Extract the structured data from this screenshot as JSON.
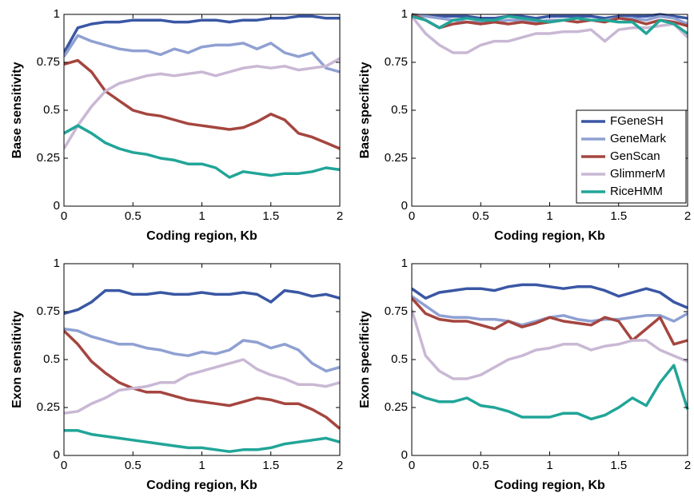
{
  "chart_data": [
    {
      "type": "line",
      "xlabel": "Coding region, Kb",
      "ylabel": "Base sensitivity",
      "x": [
        0,
        0.1,
        0.2,
        0.3,
        0.4,
        0.5,
        0.6,
        0.7,
        0.8,
        0.9,
        1,
        1.1,
        1.2,
        1.3,
        1.4,
        1.5,
        1.6,
        1.7,
        1.8,
        1.9,
        2
      ],
      "xlim": [
        0,
        2
      ],
      "ylim": [
        0,
        1
      ],
      "xticks": [
        0,
        0.5,
        1,
        1.5,
        2
      ],
      "yticks": [
        0,
        0.25,
        0.5,
        0.75,
        1
      ],
      "series": [
        {
          "color": "#3a57a4",
          "values": [
            0.8,
            0.93,
            0.95,
            0.96,
            0.96,
            0.97,
            0.97,
            0.97,
            0.96,
            0.96,
            0.97,
            0.97,
            0.96,
            0.97,
            0.97,
            0.98,
            0.98,
            0.99,
            0.99,
            0.98,
            0.98
          ]
        },
        {
          "color": "#8fa0d2",
          "values": [
            0.78,
            0.89,
            0.86,
            0.84,
            0.82,
            0.81,
            0.81,
            0.79,
            0.82,
            0.8,
            0.83,
            0.84,
            0.84,
            0.85,
            0.82,
            0.85,
            0.8,
            0.78,
            0.8,
            0.72,
            0.7
          ]
        },
        {
          "color": "#a5453f",
          "values": [
            0.74,
            0.76,
            0.7,
            0.6,
            0.55,
            0.5,
            0.48,
            0.47,
            0.45,
            0.43,
            0.42,
            0.41,
            0.4,
            0.41,
            0.44,
            0.48,
            0.45,
            0.38,
            0.36,
            0.33,
            0.3
          ]
        },
        {
          "color": "#c9b8d4",
          "values": [
            0.3,
            0.42,
            0.52,
            0.6,
            0.64,
            0.66,
            0.68,
            0.69,
            0.68,
            0.69,
            0.7,
            0.68,
            0.7,
            0.72,
            0.73,
            0.72,
            0.73,
            0.71,
            0.72,
            0.73,
            0.77
          ]
        },
        {
          "color": "#21a598",
          "values": [
            0.38,
            0.42,
            0.38,
            0.33,
            0.3,
            0.28,
            0.27,
            0.25,
            0.24,
            0.22,
            0.22,
            0.2,
            0.15,
            0.18,
            0.17,
            0.16,
            0.17,
            0.17,
            0.18,
            0.2,
            0.19
          ]
        }
      ]
    },
    {
      "type": "line",
      "xlabel": "Coding region, Kb",
      "ylabel": "Base specificity",
      "x": [
        0,
        0.1,
        0.2,
        0.3,
        0.4,
        0.5,
        0.6,
        0.7,
        0.8,
        0.9,
        1,
        1.1,
        1.2,
        1.3,
        1.4,
        1.5,
        1.6,
        1.7,
        1.8,
        1.9,
        2
      ],
      "xlim": [
        0,
        2
      ],
      "ylim": [
        0,
        1
      ],
      "xticks": [
        0,
        0.5,
        1,
        1.5,
        2
      ],
      "yticks": [
        0,
        0.25,
        0.5,
        0.75,
        1
      ],
      "legend": "lower right",
      "series": [
        {
          "name": "FGeneSH",
          "color": "#3a57a4",
          "values": [
            1,
            0.99,
            0.99,
            0.99,
            0.99,
            0.98,
            0.98,
            0.99,
            0.99,
            0.98,
            0.99,
            0.99,
            0.99,
            0.99,
            0.98,
            0.99,
            0.99,
            0.99,
            1,
            0.99,
            0.98
          ]
        },
        {
          "name": "GeneMark",
          "color": "#8fa0d2",
          "values": [
            1,
            0.99,
            0.98,
            0.97,
            0.96,
            0.96,
            0.96,
            0.97,
            0.97,
            0.96,
            0.97,
            0.97,
            0.96,
            0.97,
            0.97,
            0.98,
            0.98,
            0.97,
            0.99,
            0.98,
            0.95
          ]
        },
        {
          "name": "GenScan",
          "color": "#a5453f",
          "values": [
            1,
            0.97,
            0.93,
            0.95,
            0.96,
            0.95,
            0.96,
            0.95,
            0.96,
            0.95,
            0.96,
            0.97,
            0.96,
            0.97,
            0.96,
            0.98,
            0.97,
            0.95,
            0.97,
            0.96,
            0.94
          ]
        },
        {
          "name": "GlimmerM",
          "color": "#c9b8d4",
          "values": [
            0.99,
            0.9,
            0.84,
            0.8,
            0.8,
            0.84,
            0.86,
            0.86,
            0.88,
            0.9,
            0.9,
            0.91,
            0.91,
            0.92,
            0.86,
            0.92,
            0.93,
            0.93,
            0.94,
            0.95,
            0.88
          ]
        },
        {
          "name": "RiceHMM",
          "color": "#21a598",
          "values": [
            0.99,
            0.97,
            0.93,
            0.97,
            0.98,
            0.97,
            0.97,
            0.99,
            0.98,
            0.97,
            0.96,
            0.97,
            0.98,
            0.97,
            0.97,
            0.96,
            0.96,
            0.9,
            0.97,
            0.95,
            0.9
          ]
        }
      ]
    },
    {
      "type": "line",
      "xlabel": "Coding region, Kb",
      "ylabel": "Exon sensitivity",
      "x": [
        0,
        0.1,
        0.2,
        0.3,
        0.4,
        0.5,
        0.6,
        0.7,
        0.8,
        0.9,
        1,
        1.1,
        1.2,
        1.3,
        1.4,
        1.5,
        1.6,
        1.7,
        1.8,
        1.9,
        2
      ],
      "xlim": [
        0,
        2
      ],
      "ylim": [
        0,
        1
      ],
      "xticks": [
        0,
        0.5,
        1,
        1.5,
        2
      ],
      "yticks": [
        0,
        0.25,
        0.5,
        0.75,
        1
      ],
      "series": [
        {
          "color": "#3a57a4",
          "values": [
            0.74,
            0.76,
            0.8,
            0.86,
            0.86,
            0.84,
            0.84,
            0.85,
            0.84,
            0.84,
            0.85,
            0.84,
            0.84,
            0.85,
            0.84,
            0.8,
            0.86,
            0.85,
            0.83,
            0.84,
            0.82
          ]
        },
        {
          "color": "#8fa0d2",
          "values": [
            0.66,
            0.65,
            0.62,
            0.6,
            0.58,
            0.58,
            0.56,
            0.55,
            0.53,
            0.52,
            0.54,
            0.53,
            0.55,
            0.6,
            0.59,
            0.56,
            0.58,
            0.55,
            0.48,
            0.44,
            0.46
          ]
        },
        {
          "color": "#a5453f",
          "values": [
            0.65,
            0.58,
            0.49,
            0.43,
            0.38,
            0.35,
            0.33,
            0.33,
            0.31,
            0.29,
            0.28,
            0.27,
            0.26,
            0.28,
            0.3,
            0.29,
            0.27,
            0.27,
            0.24,
            0.2,
            0.14
          ]
        },
        {
          "color": "#c9b8d4",
          "values": [
            0.22,
            0.23,
            0.27,
            0.3,
            0.34,
            0.35,
            0.36,
            0.38,
            0.38,
            0.42,
            0.44,
            0.46,
            0.48,
            0.5,
            0.45,
            0.42,
            0.4,
            0.37,
            0.37,
            0.36,
            0.38
          ]
        },
        {
          "color": "#21a598",
          "values": [
            0.13,
            0.13,
            0.11,
            0.1,
            0.09,
            0.08,
            0.07,
            0.06,
            0.05,
            0.04,
            0.04,
            0.03,
            0.02,
            0.03,
            0.03,
            0.04,
            0.06,
            0.07,
            0.08,
            0.09,
            0.07
          ]
        }
      ]
    },
    {
      "type": "line",
      "xlabel": "Coding region, Kb",
      "ylabel": "Exon specificity",
      "x": [
        0,
        0.1,
        0.2,
        0.3,
        0.4,
        0.5,
        0.6,
        0.7,
        0.8,
        0.9,
        1,
        1.1,
        1.2,
        1.3,
        1.4,
        1.5,
        1.6,
        1.7,
        1.8,
        1.9,
        2
      ],
      "xlim": [
        0,
        2
      ],
      "ylim": [
        0,
        1
      ],
      "xticks": [
        0,
        0.5,
        1,
        1.5,
        2
      ],
      "yticks": [
        0,
        0.25,
        0.5,
        0.75,
        1
      ],
      "series": [
        {
          "color": "#3a57a4",
          "values": [
            0.87,
            0.82,
            0.85,
            0.86,
            0.87,
            0.87,
            0.86,
            0.88,
            0.89,
            0.89,
            0.88,
            0.87,
            0.88,
            0.88,
            0.86,
            0.83,
            0.85,
            0.87,
            0.85,
            0.8,
            0.77
          ]
        },
        {
          "color": "#8fa0d2",
          "values": [
            0.83,
            0.78,
            0.73,
            0.72,
            0.72,
            0.71,
            0.71,
            0.7,
            0.68,
            0.7,
            0.72,
            0.73,
            0.71,
            0.7,
            0.71,
            0.71,
            0.72,
            0.73,
            0.73,
            0.7,
            0.74
          ]
        },
        {
          "color": "#a5453f",
          "values": [
            0.82,
            0.74,
            0.71,
            0.7,
            0.7,
            0.68,
            0.66,
            0.7,
            0.67,
            0.69,
            0.72,
            0.7,
            0.69,
            0.68,
            0.72,
            0.7,
            0.6,
            0.66,
            0.72,
            0.58,
            0.6
          ]
        },
        {
          "color": "#c9b8d4",
          "values": [
            0.76,
            0.52,
            0.44,
            0.4,
            0.4,
            0.42,
            0.46,
            0.5,
            0.52,
            0.55,
            0.56,
            0.58,
            0.58,
            0.55,
            0.57,
            0.58,
            0.6,
            0.6,
            0.55,
            0.52,
            0.49
          ]
        },
        {
          "color": "#21a598",
          "values": [
            0.33,
            0.3,
            0.28,
            0.28,
            0.3,
            0.26,
            0.25,
            0.23,
            0.2,
            0.2,
            0.2,
            0.22,
            0.22,
            0.19,
            0.21,
            0.25,
            0.3,
            0.26,
            0.38,
            0.47,
            0.24
          ]
        }
      ]
    }
  ]
}
